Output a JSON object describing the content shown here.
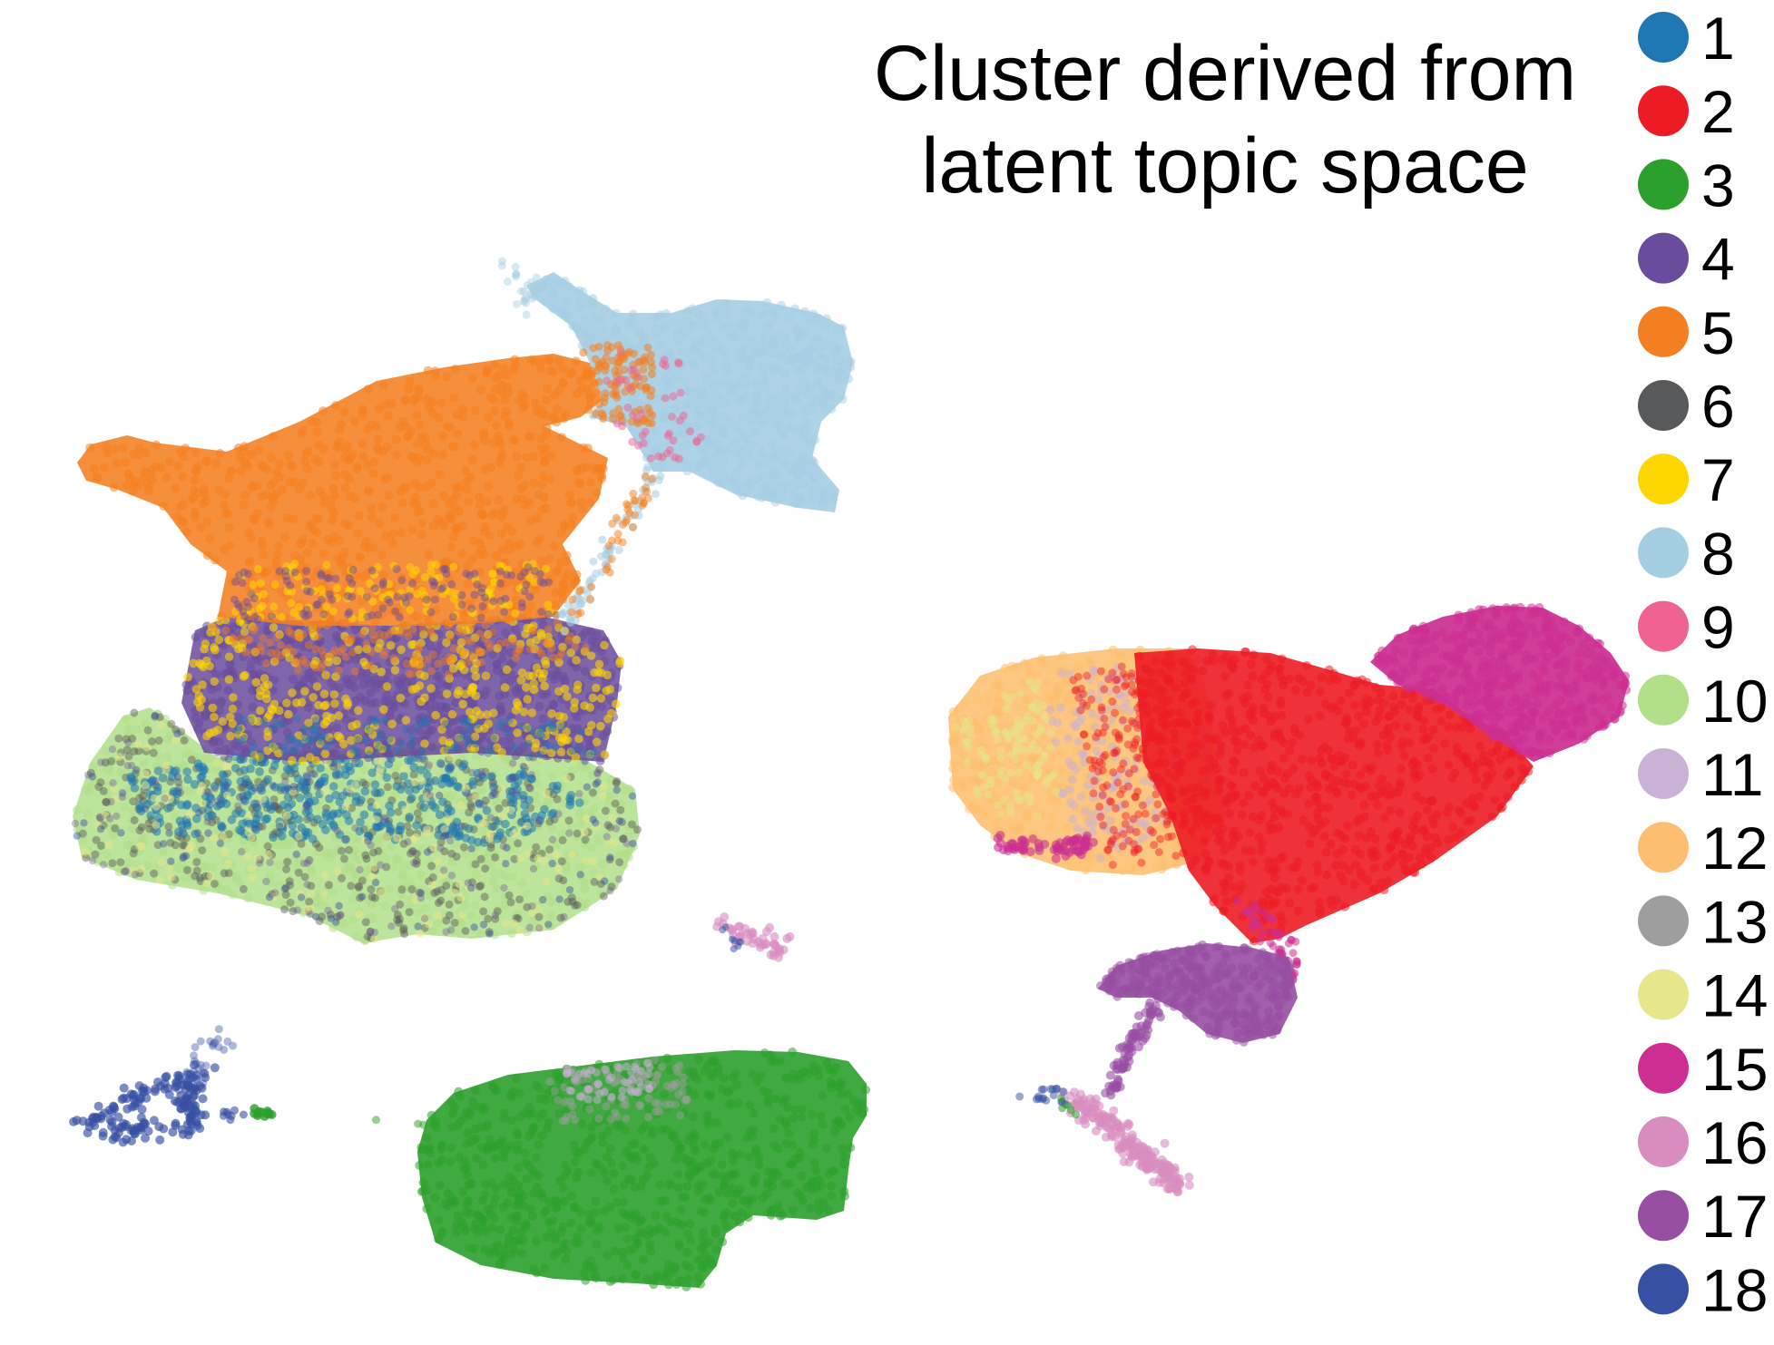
{
  "chart_data": {
    "type": "scatter",
    "title": "Cluster derived from\nlatent topic space",
    "xlabel": "",
    "ylabel": "",
    "axes_visible": false,
    "grid": false,
    "legend_position": "right",
    "series": [
      {
        "name": "1",
        "color": "#1f77b4"
      },
      {
        "name": "2",
        "color": "#ed1c24"
      },
      {
        "name": "3",
        "color": "#2ca02c"
      },
      {
        "name": "4",
        "color": "#6a4c9c"
      },
      {
        "name": "5",
        "color": "#f47f20"
      },
      {
        "name": "6",
        "color": "#58595b"
      },
      {
        "name": "7",
        "color": "#ffd700"
      },
      {
        "name": "8",
        "color": "#a6cee3"
      },
      {
        "name": "9",
        "color": "#f06292"
      },
      {
        "name": "10",
        "color": "#b2df8a"
      },
      {
        "name": "11",
        "color": "#cab2d6"
      },
      {
        "name": "12",
        "color": "#fdbf6f"
      },
      {
        "name": "13",
        "color": "#9e9e9e"
      },
      {
        "name": "14",
        "color": "#e6e68a"
      },
      {
        "name": "15",
        "color": "#cc2e91"
      },
      {
        "name": "16",
        "color": "#d98cc0"
      },
      {
        "name": "17",
        "color": "#984ea3"
      },
      {
        "name": "18",
        "color": "#3850a3"
      }
    ]
  }
}
